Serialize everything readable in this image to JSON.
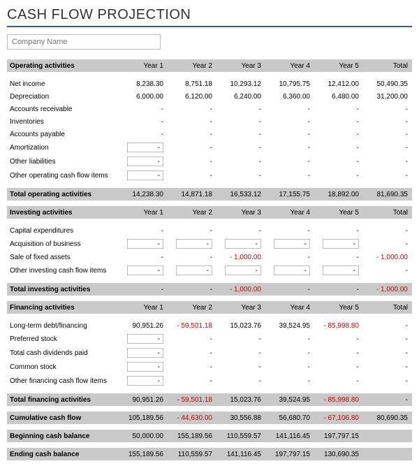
{
  "title": "CASH FLOW PROJECTION",
  "company_placeholder": "Company Name",
  "columns": {
    "y1": "Year 1",
    "y2": "Year 2",
    "y3": "Year 3",
    "y4": "Year 4",
    "y5": "Year 5",
    "total": "Total"
  },
  "sections": {
    "operating": {
      "title": "Operating activities",
      "rows": [
        {
          "label": "Net income",
          "vals": [
            "8,238.30",
            "8,751.18",
            "10,293.12",
            "10,795.75",
            "12,412.00",
            "50,490.35"
          ],
          "boxed": [],
          "neg": []
        },
        {
          "label": "Depreciation",
          "vals": [
            "6,000.00",
            "6,120.00",
            "6,240.00",
            "6,360.00",
            "6,480.00",
            "31,200.00"
          ],
          "boxed": [],
          "neg": []
        },
        {
          "label": "Accounts receivable",
          "vals": [
            "-",
            "-",
            "-",
            "-",
            "-",
            "-"
          ],
          "boxed": [],
          "neg": []
        },
        {
          "label": "Inventories",
          "vals": [
            "-",
            "-",
            "-",
            "-",
            "-",
            "-"
          ],
          "boxed": [],
          "neg": []
        },
        {
          "label": "Accounts payable",
          "vals": [
            "-",
            "-",
            "-",
            "-",
            "-",
            "-"
          ],
          "boxed": [],
          "neg": []
        },
        {
          "label": "Amortization",
          "vals": [
            "-",
            "-",
            "-",
            "-",
            "-",
            "-"
          ],
          "boxed": [
            0
          ],
          "neg": []
        },
        {
          "label": "Other liabilities",
          "vals": [
            "-",
            "-",
            "-",
            "-",
            "-",
            "-"
          ],
          "boxed": [
            0
          ],
          "neg": []
        },
        {
          "label": "Other operating cash flow items",
          "vals": [
            "-",
            "-",
            "-",
            "-",
            "-",
            "-"
          ],
          "boxed": [
            0
          ],
          "neg": []
        }
      ],
      "total": {
        "label": "Total operating activities",
        "vals": [
          "14,238.30",
          "14,871.18",
          "16,533.12",
          "17,155.75",
          "18,892.00",
          "81,690.35"
        ],
        "neg": []
      }
    },
    "investing": {
      "title": "Investing activities",
      "rows": [
        {
          "label": "Capital expenditures",
          "vals": [
            "-",
            "-",
            "-",
            "-",
            "-",
            "-"
          ],
          "boxed": [],
          "neg": []
        },
        {
          "label": "Acquisition of business",
          "vals": [
            "-",
            "-",
            "-",
            "-",
            "-",
            "-"
          ],
          "boxed": [
            0,
            1,
            2,
            3,
            4
          ],
          "neg": []
        },
        {
          "label": "Sale of fixed assets",
          "vals": [
            "-",
            "-",
            "-   1,000.00",
            "-",
            "-",
            "-   1,000.00"
          ],
          "boxed": [],
          "neg": [
            2,
            5
          ]
        },
        {
          "label": "Other investing cash flow items",
          "vals": [
            "-",
            "-",
            "-",
            "-",
            "-",
            "-"
          ],
          "boxed": [
            0,
            1,
            2,
            3,
            4
          ],
          "neg": []
        }
      ],
      "total": {
        "label": "Total investing activities",
        "vals": [
          "-",
          "-",
          "-   1,000.00",
          "-",
          "-",
          "-   1,000.00"
        ],
        "neg": [
          2,
          5
        ]
      }
    },
    "financing": {
      "title": "Financing activities",
      "rows": [
        {
          "label": "Long-term debt/financing",
          "vals": [
            "90,951.26",
            "-  59,501.18",
            "15,023.76",
            "39,524.95",
            "-  85,998.80",
            "-"
          ],
          "boxed": [],
          "neg": [
            1,
            4
          ]
        },
        {
          "label": "Preferred stock",
          "vals": [
            "-",
            "-",
            "-",
            "-",
            "-",
            "-"
          ],
          "boxed": [
            0
          ],
          "neg": []
        },
        {
          "label": "Total cash dividends paid",
          "vals": [
            "-",
            "-",
            "-",
            "-",
            "-",
            "-"
          ],
          "boxed": [
            0
          ],
          "neg": []
        },
        {
          "label": "Common stock",
          "vals": [
            "-",
            "-",
            "-",
            "-",
            "-",
            "-"
          ],
          "boxed": [
            0
          ],
          "neg": []
        },
        {
          "label": "Other financing cash flow items",
          "vals": [
            "-",
            "-",
            "-",
            "-",
            "-",
            "-"
          ],
          "boxed": [
            0
          ],
          "neg": []
        }
      ],
      "total": {
        "label": "Total financing activities",
        "vals": [
          "90,951.26",
          "-  59,501.18",
          "15,023.76",
          "39,524.95",
          "-  85,998.80",
          "-"
        ],
        "neg": [
          1,
          4
        ]
      }
    }
  },
  "summaries": [
    {
      "label": "Cumulative cash flow",
      "vals": [
        "105,189.56",
        "-  44,630.00",
        "30,556.88",
        "56,680.70",
        "-  67,106.80",
        "80,690.35"
      ],
      "neg": [
        1,
        4
      ]
    },
    {
      "label": "Beginning cash balance",
      "vals": [
        "50,000.00",
        "155,189.56",
        "110,559.57",
        "141,116.45",
        "197,797.15",
        ""
      ],
      "neg": []
    },
    {
      "label": "Ending cash balance",
      "vals": [
        "155,189.56",
        "110,559.57",
        "141,116.45",
        "197,797.15",
        "130,690.35",
        ""
      ],
      "neg": []
    }
  ]
}
